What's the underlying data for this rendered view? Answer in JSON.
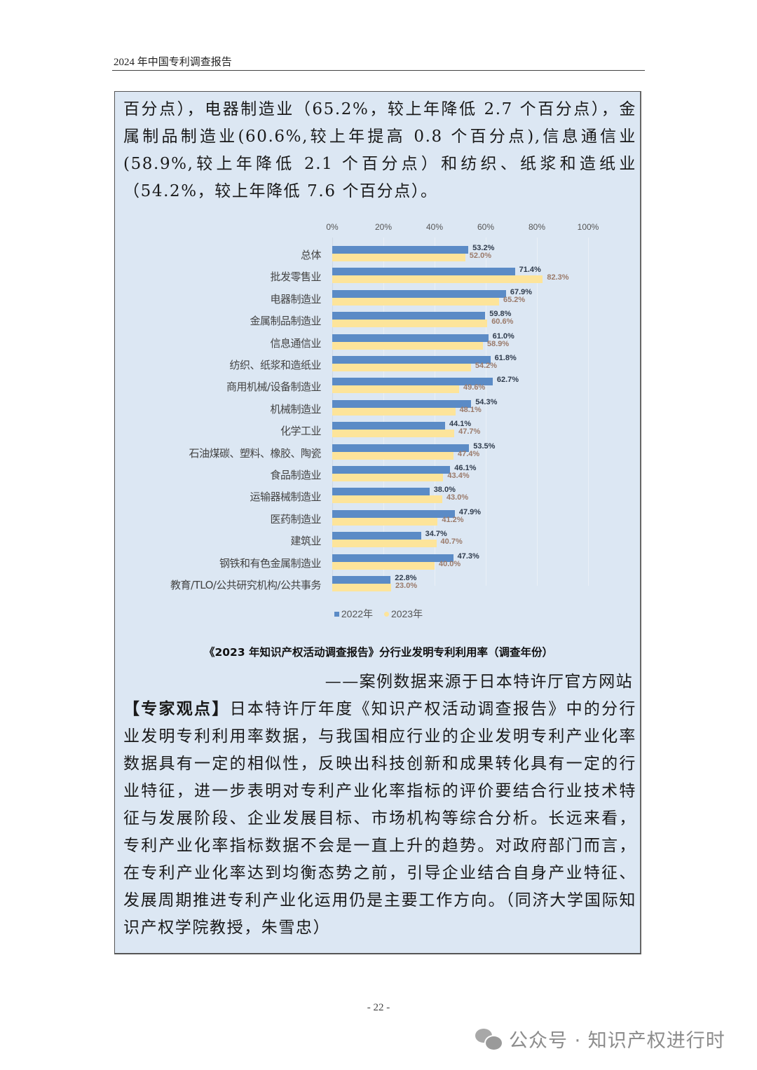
{
  "running_head": "2024 年中国专利调查报告",
  "intro_paragraph": "百分点），电器制造业（65.2%，较上年降低 2.7 个百分点），金属制品制造业(60.6%,较上年提高 0.8 个百分点),信息通信业(58.9%,较上年降低 2.1 个百分点）和纺织、纸浆和造纸业（54.2%，较上年降低 7.6 个百分点）。",
  "colors": {
    "series_2022": "#5b8bc6",
    "series_2023": "#fde49a",
    "box_bg": "#dce7f3"
  },
  "chart_data": {
    "type": "bar",
    "orientation": "horizontal",
    "title": "《2023 年知识产权活动调查报告》分行业发明专利利用率（调查年份）",
    "xlabel": "",
    "ylabel": "",
    "xlim": [
      0,
      100
    ],
    "x_ticks": [
      "0%",
      "20%",
      "40%",
      "60%",
      "80%",
      "100%"
    ],
    "x_tick_position": "top",
    "grid": true,
    "legend_position": "bottom",
    "categories": [
      "总体",
      "批发零售业",
      "电器制造业",
      "金属制品制造业",
      "信息通信业",
      "纺织、纸浆和造纸业",
      "商用机械/设备制造业",
      "机械制造业",
      "化学工业",
      "石油煤碳、塑料、橡胶、陶瓷",
      "食品制造业",
      "运输器械制造业",
      "医药制造业",
      "建筑业",
      "钢铁和有色金属制造业",
      "教育/TLO/公共研究机构/公共事务"
    ],
    "series": [
      {
        "name": "2022年",
        "values": [
          53.2,
          71.4,
          67.9,
          59.8,
          61.0,
          61.8,
          62.7,
          54.3,
          44.1,
          53.5,
          46.1,
          38.0,
          47.9,
          34.7,
          47.3,
          22.8
        ],
        "labels": [
          "53.2%",
          "71.4%",
          "67.9%",
          "59.8%",
          "61.0%",
          "61.8%",
          "62.7%",
          "54.3%",
          "44.1%",
          "53.5%",
          "46.1%",
          "38.0%",
          "47.9%",
          "34.7%",
          "47.3%",
          "22.8%"
        ]
      },
      {
        "name": "2023年",
        "values": [
          52.0,
          82.3,
          65.2,
          60.6,
          58.9,
          54.2,
          49.6,
          48.1,
          47.7,
          47.4,
          43.4,
          43.0,
          41.2,
          40.7,
          40.0,
          23.0
        ],
        "labels": [
          "52.0%",
          "82.3%",
          "65.2%",
          "60.6%",
          "58.9%",
          "54.2%",
          "49.6%",
          "48.1%",
          "47.7%",
          "47.4%",
          "43.4%",
          "43.0%",
          "41.2%",
          "40.7%",
          "40.0%",
          "23.0%"
        ]
      }
    ]
  },
  "source_line": "——案例数据来源于日本特许厅官方网站",
  "expert": {
    "tag": "【专家观点】",
    "text": "日本特许厅年度《知识产权活动调查报告》中的分行业发明专利利用率数据，与我国相应行业的企业发明专利产业化率数据具有一定的相似性，反映出科技创新和成果转化具有一定的行业特征，进一步表明对专利产业化率指标的评价要结合行业技术特征与发展阶段、企业发展目标、市场机构等综合分析。长远来看，专利产业化率指标数据不会是一直上升的趋势。对政府部门而言，在专利产业化率达到均衡态势之前，引导企业结合自身产业特征、发展周期推进专利产业化运用仍是主要工作方向。（同济大学国际知识产权学院教授，朱雪忠）"
  },
  "page_number": "- 22 -",
  "watermark": {
    "icon": "wechat-icon",
    "text": "公众号 · 知识产权进行时"
  }
}
